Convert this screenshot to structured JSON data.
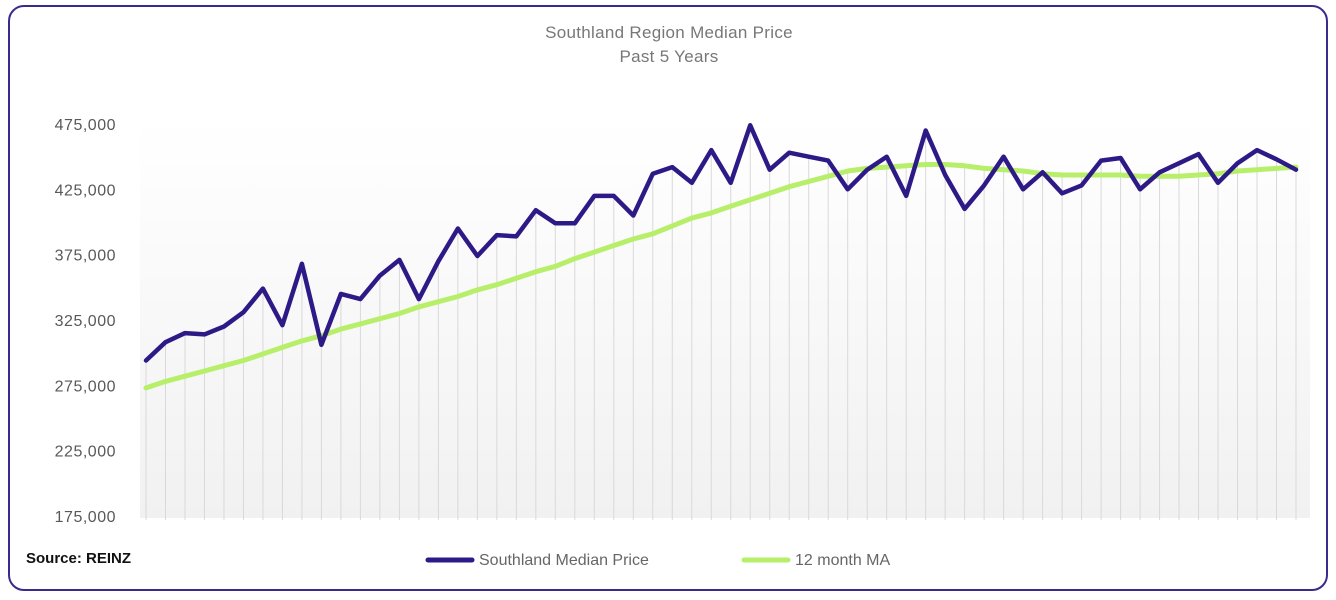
{
  "chart_data": {
    "type": "line",
    "title": "Southland Region Median Price",
    "subtitle": "Past 5 Years",
    "source": "Source: REINZ",
    "ylim": [
      175000,
      475000
    ],
    "yticks": [
      175000,
      225000,
      275000,
      325000,
      375000,
      425000,
      475000
    ],
    "ytick_labels": [
      "175,000",
      "225,000",
      "275,000",
      "325,000",
      "375,000",
      "425,000",
      "475,000"
    ],
    "xlabel": "",
    "ylabel": "",
    "legend_position": "bottom",
    "series": [
      {
        "name": "Southland Median Price",
        "color": "#2e1a87",
        "values": [
          294000,
          308000,
          315000,
          314000,
          320000,
          331000,
          349000,
          321000,
          368000,
          306000,
          345000,
          341000,
          359000,
          371000,
          341000,
          370000,
          395000,
          374000,
          390000,
          389000,
          409000,
          399000,
          399000,
          420000,
          420000,
          405000,
          437000,
          442000,
          430000,
          455000,
          430000,
          474000,
          440000,
          453000,
          450000,
          447000,
          425000,
          440000,
          450000,
          420000,
          470000,
          436000,
          410000,
          428000,
          450000,
          425000,
          438000,
          422000,
          428000,
          447000,
          449000,
          425000,
          438000,
          445000,
          452000,
          430000,
          445000,
          455000,
          448000,
          440000
        ]
      },
      {
        "name": "12 month MA",
        "color": "#b7ef6a",
        "values": [
          273000,
          278000,
          282000,
          286000,
          290000,
          294000,
          299000,
          304000,
          309000,
          313000,
          318000,
          322000,
          326000,
          330000,
          335000,
          339000,
          343000,
          348000,
          352000,
          357000,
          362000,
          366000,
          372000,
          377000,
          382000,
          387000,
          391000,
          397000,
          403000,
          407000,
          412000,
          417000,
          422000,
          427000,
          431000,
          435000,
          439000,
          441000,
          442000,
          443000,
          444000,
          444000,
          443000,
          441000,
          440000,
          439000,
          437000,
          436000,
          436000,
          436000,
          436000,
          435000,
          435000,
          435000,
          436000,
          437000,
          439000,
          440000,
          441000,
          442000
        ]
      }
    ]
  }
}
